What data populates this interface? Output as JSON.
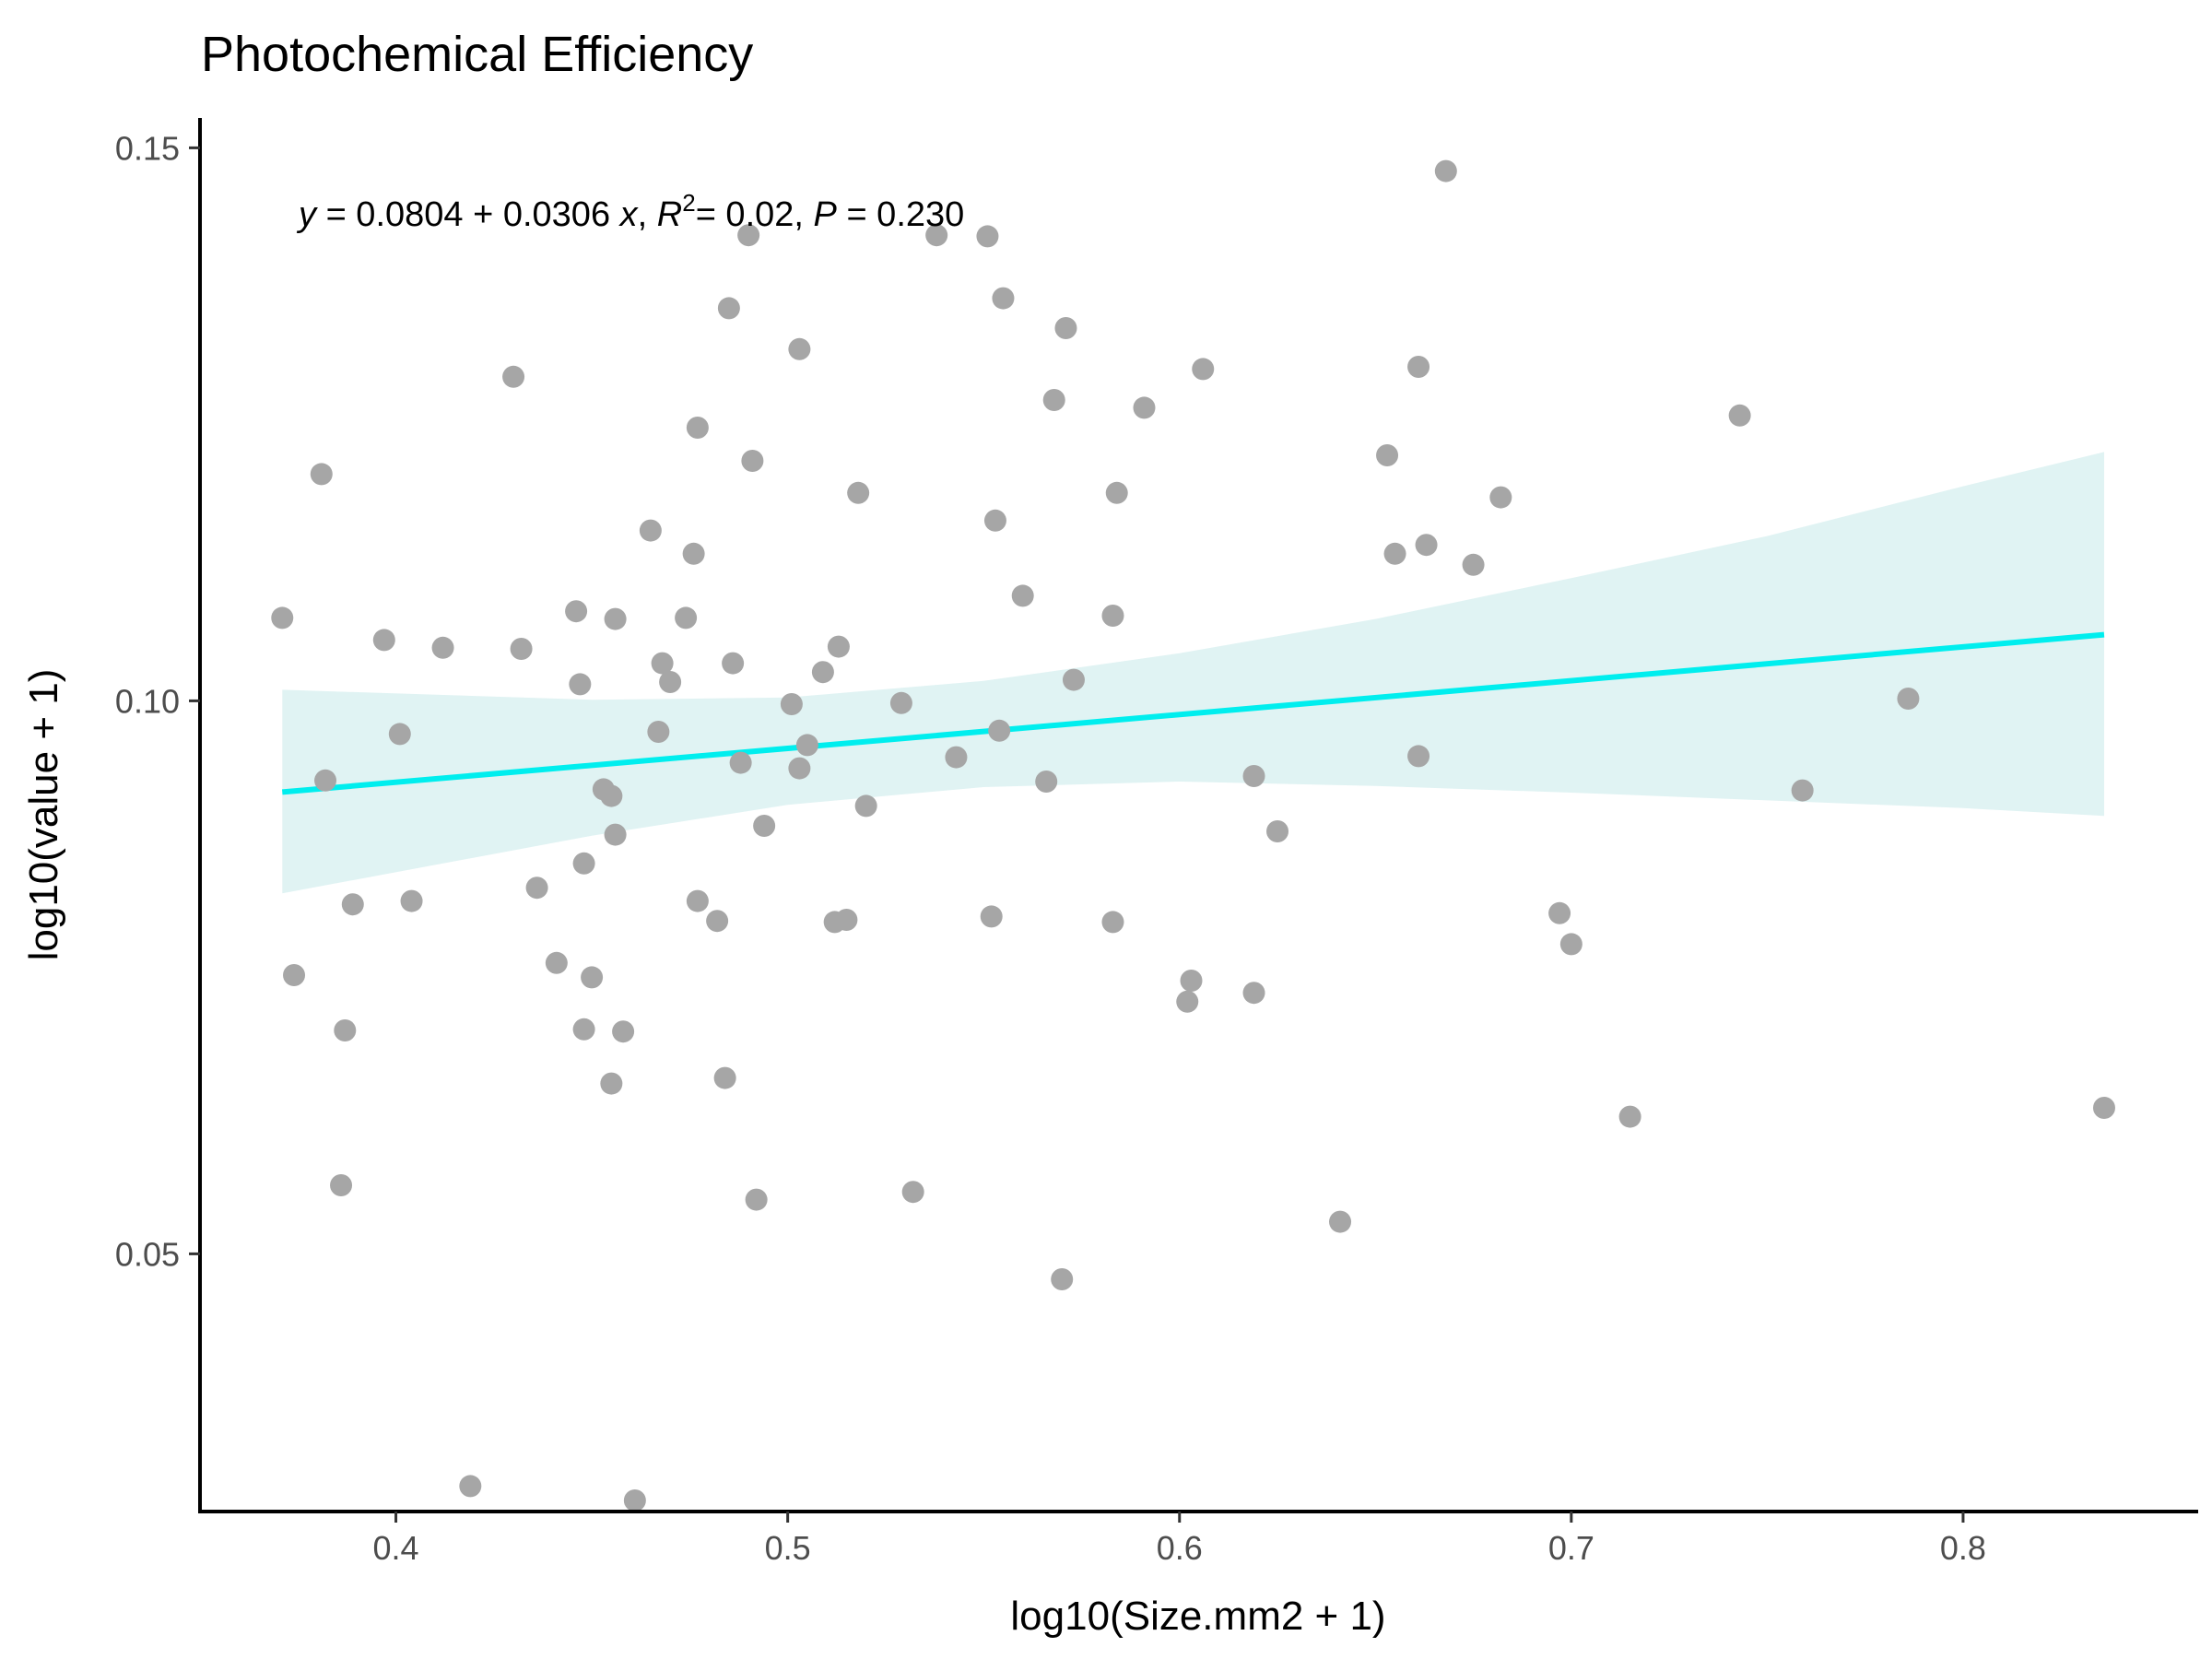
{
  "chart_data": {
    "type": "scatter",
    "title": "Photochemical Efficiency",
    "xlabel": "log10(Size.mm2 + 1)",
    "ylabel": "log10(value + 1)",
    "xlim": [
      0.35,
      0.86
    ],
    "ylim": [
      0.0267,
      0.1527
    ],
    "x_ticks": [
      0.4,
      0.5,
      0.6,
      0.7,
      0.8
    ],
    "x_tick_labels": [
      "0.4",
      "0.5",
      "0.6",
      "0.7",
      "0.8"
    ],
    "y_ticks": [
      0.05,
      0.1,
      0.15
    ],
    "y_tick_labels": [
      "0.05",
      "0.10",
      "0.15"
    ],
    "grid": false,
    "annotation": {
      "y": "y",
      "eq1": "= 0.0804 + 0.0306",
      "x": "x",
      "R": "R",
      "sup": "2",
      "eq2": "= 0.02,",
      "P": "P",
      "eq3": "= 0.230"
    },
    "regression": {
      "intercept": 0.0804,
      "slope": 0.0306,
      "x_range": [
        0.371,
        0.836
      ],
      "color": "#00EEEE",
      "band_color": "#E0F3F3",
      "band": {
        "x": [
          0.371,
          0.45,
          0.5,
          0.55,
          0.6,
          0.65,
          0.7,
          0.75,
          0.8,
          0.836
        ],
        "lower": [
          0.0826,
          0.0878,
          0.0906,
          0.0922,
          0.0927,
          0.0923,
          0.0917,
          0.091,
          0.0903,
          0.0896
        ],
        "upper": [
          0.101,
          0.1001,
          0.1003,
          0.1018,
          0.1043,
          0.1074,
          0.1111,
          0.1149,
          0.1194,
          0.1225
        ]
      }
    },
    "point_color": "#A6A6A6",
    "series": [
      {
        "points": [
          [
            0.371,
            0.1075
          ],
          [
            0.374,
            0.0752
          ],
          [
            0.381,
            0.1205
          ],
          [
            0.382,
            0.0928
          ],
          [
            0.386,
            0.0562
          ],
          [
            0.387,
            0.0702
          ],
          [
            0.389,
            0.0816
          ],
          [
            0.397,
            0.1055
          ],
          [
            0.401,
            0.097
          ],
          [
            0.404,
            0.0819
          ],
          [
            0.412,
            0.1048
          ],
          [
            0.419,
            0.029
          ],
          [
            0.43,
            0.1293
          ],
          [
            0.432,
            0.1047
          ],
          [
            0.436,
            0.0831
          ],
          [
            0.441,
            0.0763
          ],
          [
            0.446,
            0.1081
          ],
          [
            0.447,
            0.1015
          ],
          [
            0.448,
            0.0703
          ],
          [
            0.448,
            0.0853
          ],
          [
            0.45,
            0.075
          ],
          [
            0.453,
            0.092
          ],
          [
            0.455,
            0.0654
          ],
          [
            0.455,
            0.0914
          ],
          [
            0.456,
            0.0879
          ],
          [
            0.456,
            0.1074
          ],
          [
            0.458,
            0.0701
          ],
          [
            0.461,
            0.0277
          ],
          [
            0.465,
            0.1154
          ],
          [
            0.467,
            0.0972
          ],
          [
            0.468,
            0.1034
          ],
          [
            0.47,
            0.1017
          ],
          [
            0.474,
            0.1075
          ],
          [
            0.476,
            0.1133
          ],
          [
            0.477,
            0.1247
          ],
          [
            0.477,
            0.0819
          ],
          [
            0.482,
            0.0801
          ],
          [
            0.484,
            0.0659
          ],
          [
            0.485,
            0.1355
          ],
          [
            0.486,
            0.1034
          ],
          [
            0.488,
            0.0944
          ],
          [
            0.49,
            0.1421
          ],
          [
            0.491,
            0.1217
          ],
          [
            0.492,
            0.0549
          ],
          [
            0.494,
            0.0887
          ],
          [
            0.501,
            0.0997
          ],
          [
            0.503,
            0.1318
          ],
          [
            0.503,
            0.0939
          ],
          [
            0.505,
            0.096
          ],
          [
            0.509,
            0.1026
          ],
          [
            0.512,
            0.08
          ],
          [
            0.513,
            0.1049
          ],
          [
            0.515,
            0.0802
          ],
          [
            0.518,
            0.1188
          ],
          [
            0.52,
            0.0905
          ],
          [
            0.529,
            0.0998
          ],
          [
            0.532,
            0.0556
          ],
          [
            0.538,
            0.1421
          ],
          [
            0.543,
            0.0949
          ],
          [
            0.551,
            0.142
          ],
          [
            0.552,
            0.0805
          ],
          [
            0.553,
            0.1163
          ],
          [
            0.554,
            0.0973
          ],
          [
            0.555,
            0.1364
          ],
          [
            0.56,
            0.1095
          ],
          [
            0.566,
            0.0927
          ],
          [
            0.568,
            0.1272
          ],
          [
            0.57,
            0.0477
          ],
          [
            0.571,
            0.1337
          ],
          [
            0.573,
            0.1019
          ],
          [
            0.583,
            0.1077
          ],
          [
            0.583,
            0.08
          ],
          [
            0.584,
            0.1188
          ],
          [
            0.591,
            0.1265
          ],
          [
            0.602,
            0.0728
          ],
          [
            0.603,
            0.0747
          ],
          [
            0.606,
            0.13
          ],
          [
            0.619,
            0.0932
          ],
          [
            0.619,
            0.0736
          ],
          [
            0.625,
            0.0882
          ],
          [
            0.641,
            0.0529
          ],
          [
            0.653,
            0.1222
          ],
          [
            0.655,
            0.1133
          ],
          [
            0.661,
            0.095
          ],
          [
            0.661,
            0.1302
          ],
          [
            0.663,
            0.1141
          ],
          [
            0.668,
            0.1479
          ],
          [
            0.675,
            0.1123
          ],
          [
            0.682,
            0.1184
          ],
          [
            0.697,
            0.0808
          ],
          [
            0.7,
            0.078
          ],
          [
            0.715,
            0.0624
          ],
          [
            0.743,
            0.1258
          ],
          [
            0.759,
            0.0919
          ],
          [
            0.786,
            0.1002
          ],
          [
            0.836,
            0.0632
          ]
        ]
      }
    ]
  }
}
